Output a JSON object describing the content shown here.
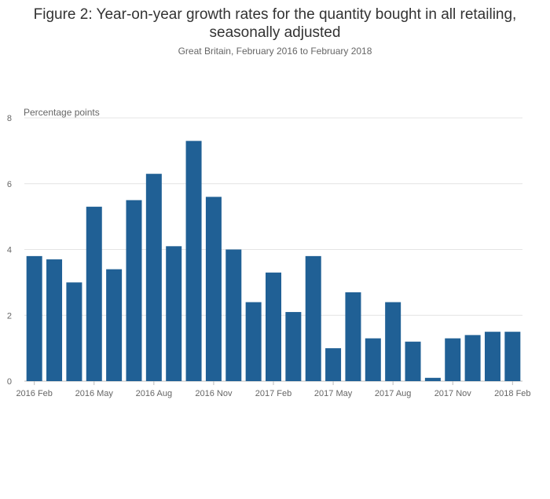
{
  "chart_data": {
    "type": "bar",
    "title": "Figure 2: Year-on-year growth rates for the quantity bought in all retailing, seasonally adjusted",
    "subtitle": "Great Britain, February 2016 to February 2018",
    "ylabel": "Percentage points",
    "xlabel": "",
    "ylim": [
      0,
      8
    ],
    "yticks": [
      "0",
      "2",
      "4",
      "6",
      "8"
    ],
    "grid": true,
    "color": "#206095",
    "categories": [
      "2016 Feb",
      "2016 Mar",
      "2016 Apr",
      "2016 May",
      "2016 Jun",
      "2016 Jul",
      "2016 Aug",
      "2016 Sep",
      "2016 Oct",
      "2016 Nov",
      "2016 Dec",
      "2017 Jan",
      "2017 Feb",
      "2017 Mar",
      "2017 Apr",
      "2017 May",
      "2017 Jun",
      "2017 Jul",
      "2017 Aug",
      "2017 Sep",
      "2017 Oct",
      "2017 Nov",
      "2017 Dec",
      "2018 Jan",
      "2018 Feb"
    ],
    "values": [
      3.8,
      3.7,
      3.0,
      5.3,
      3.4,
      5.5,
      6.3,
      4.1,
      7.3,
      5.6,
      4.0,
      2.4,
      3.3,
      2.1,
      3.8,
      1.0,
      2.7,
      1.3,
      2.4,
      1.2,
      0.1,
      1.3,
      1.4,
      1.5,
      1.5
    ],
    "xtick_labels": [
      "2016 Feb",
      "2016 May",
      "2016 Aug",
      "2016 Nov",
      "2017 Feb",
      "2017 May",
      "2017 Aug",
      "2017 Nov",
      "2018 Feb"
    ]
  }
}
